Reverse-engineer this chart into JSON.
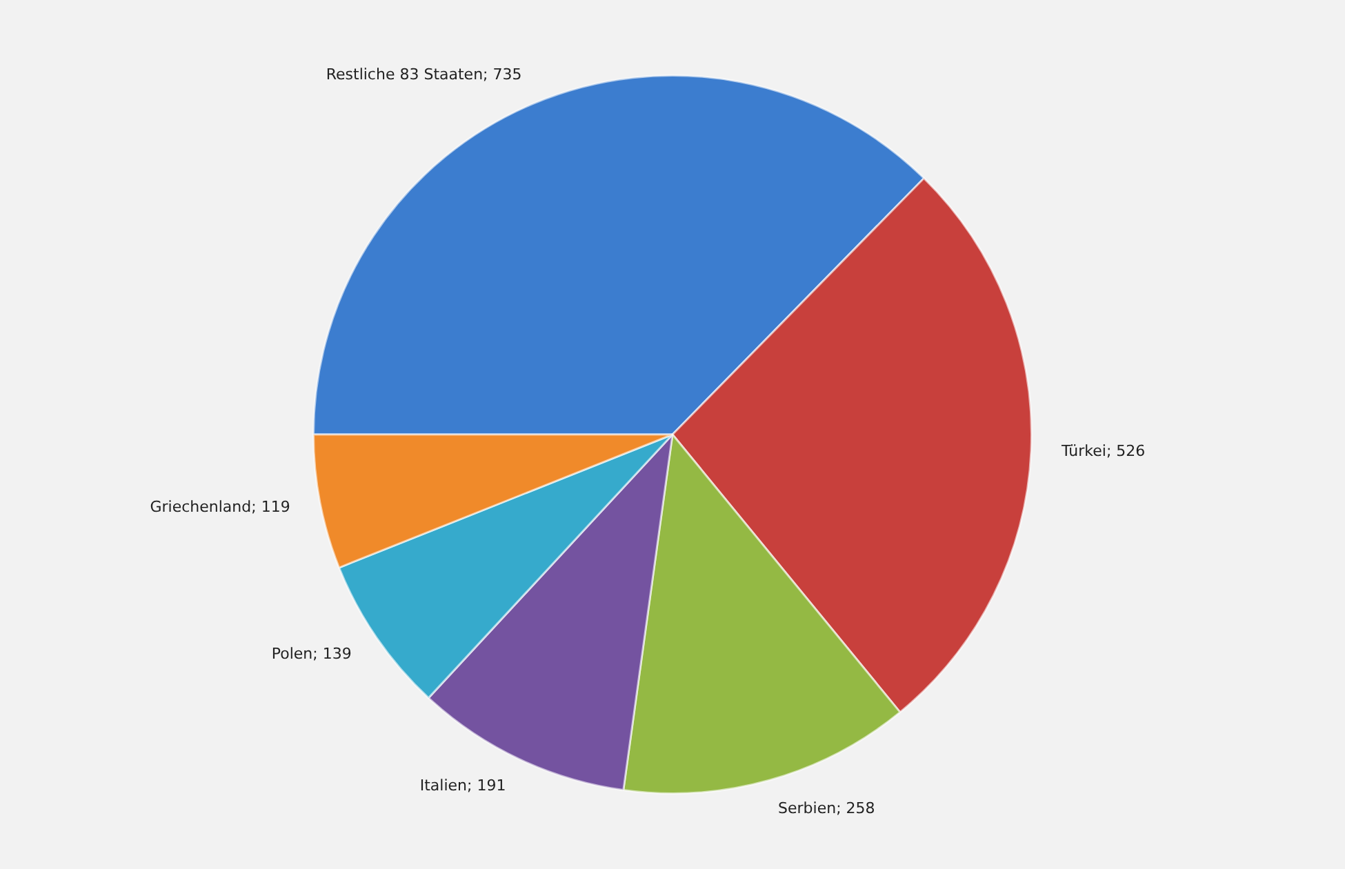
{
  "chart_data": {
    "type": "pie",
    "categories": [
      "Restliche 83 Staaten",
      "Türkei",
      "Serbien",
      "Italien",
      "Polen",
      "Griechenland"
    ],
    "values": [
      735,
      526,
      258,
      191,
      139,
      119
    ],
    "value_labels": [
      "; 735",
      "; 526",
      "; 258",
      "; 191",
      "; 139",
      "; 119"
    ],
    "colors": [
      "#3c7dcf",
      "#c8403c",
      "#94b944",
      "#7453a0",
      "#36aacc",
      "#f08a2a"
    ],
    "legend": false
  }
}
